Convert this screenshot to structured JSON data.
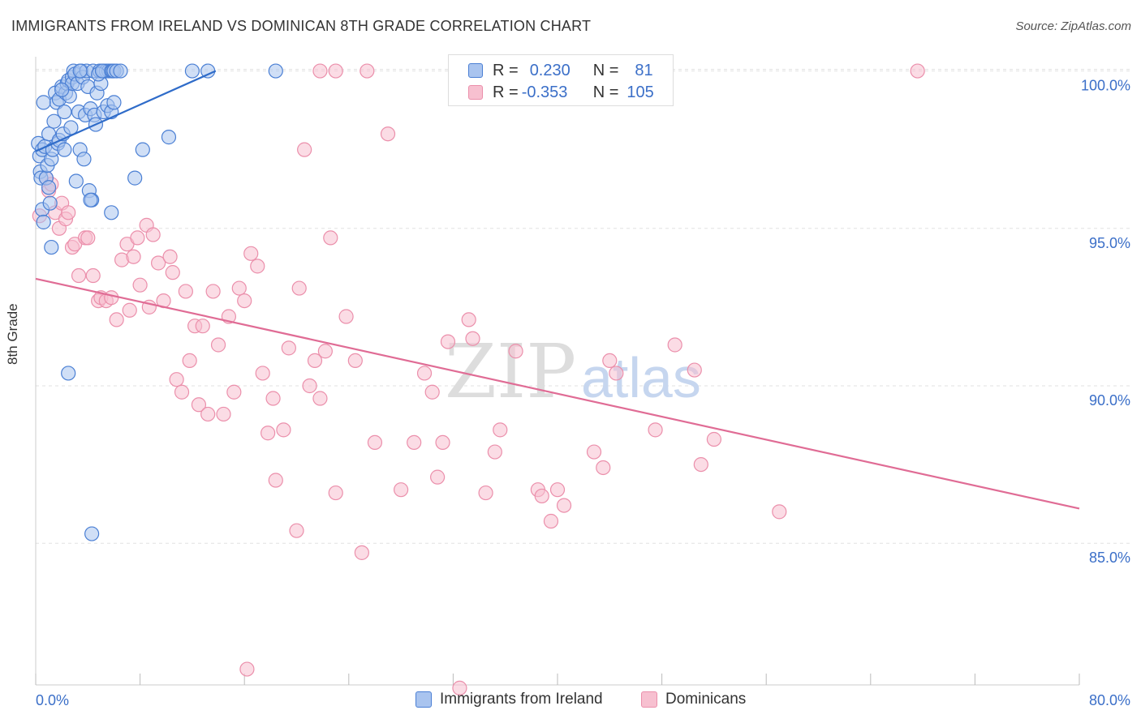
{
  "title": "IMMIGRANTS FROM IRELAND VS DOMINICAN 8TH GRADE CORRELATION CHART",
  "source": "Source: ZipAtlas.com",
  "watermark": {
    "part1": "ZIP",
    "part2": "atlas"
  },
  "legend": {
    "rows": [
      {
        "r_label": "R =",
        "r_value": "0.230",
        "n_label": "N =",
        "n_value": "81"
      },
      {
        "r_label": "R =",
        "r_value": "-0.353",
        "n_label": "N =",
        "n_value": "105"
      }
    ]
  },
  "colors": {
    "blue_fill": "#a9c4ef",
    "blue_stroke": "#4a7fd4",
    "blue_line": "#2f6cc9",
    "pink_fill": "#f7c0d0",
    "pink_stroke": "#eb8fab",
    "pink_line": "#e06c95",
    "tick_label": "#3b6fc8",
    "grid": "#e2e2e2"
  },
  "chart_data": {
    "type": "scatter",
    "title": "IMMIGRANTS FROM IRELAND VS DOMINICAN 8TH GRADE CORRELATION CHART",
    "xlabel": "",
    "ylabel": "8th Grade",
    "xlim": [
      0,
      80
    ],
    "ylim": [
      80.5,
      100.4
    ],
    "x_tick_labels": [
      "0.0%",
      "80.0%"
    ],
    "y_ticks": [
      85,
      90,
      95,
      100
    ],
    "y_tick_labels": [
      "85.0%",
      "90.0%",
      "95.0%",
      "100.0%"
    ],
    "grid": "horizontal dashed",
    "legend_position": "bottom",
    "series": [
      {
        "name": "Immigrants from Ireland",
        "color": "#a9c4ef",
        "r": 0.23,
        "n": 81,
        "trend": {
          "x": [
            0,
            13.8
          ],
          "y": [
            97.45,
            100.0
          ]
        },
        "points": [
          [
            0.2,
            97.7
          ],
          [
            0.3,
            97.3
          ],
          [
            0.35,
            96.8
          ],
          [
            0.4,
            96.6
          ],
          [
            0.5,
            97.5
          ],
          [
            0.5,
            95.6
          ],
          [
            0.6,
            95.2
          ],
          [
            0.7,
            97.6
          ],
          [
            0.8,
            96.6
          ],
          [
            0.9,
            97.0
          ],
          [
            1.0,
            96.3
          ],
          [
            1.1,
            95.8
          ],
          [
            1.0,
            98.0
          ],
          [
            1.2,
            97.2
          ],
          [
            1.3,
            97.5
          ],
          [
            1.4,
            98.4
          ],
          [
            1.5,
            99.3
          ],
          [
            1.6,
            99.0
          ],
          [
            1.7,
            97.7
          ],
          [
            1.8,
            99.1
          ],
          [
            1.8,
            97.8
          ],
          [
            2.0,
            99.5
          ],
          [
            2.1,
            98.0
          ],
          [
            2.2,
            97.5
          ],
          [
            2.3,
            99.3
          ],
          [
            2.4,
            99.6
          ],
          [
            2.5,
            99.7
          ],
          [
            2.6,
            99.2
          ],
          [
            2.7,
            98.2
          ],
          [
            2.8,
            99.8
          ],
          [
            2.8,
            99.6
          ],
          [
            2.9,
            100.0
          ],
          [
            3.0,
            99.9
          ],
          [
            3.1,
            96.5
          ],
          [
            3.2,
            99.6
          ],
          [
            3.3,
            98.7
          ],
          [
            3.4,
            97.5
          ],
          [
            3.5,
            100.0
          ],
          [
            3.6,
            99.8
          ],
          [
            3.7,
            97.2
          ],
          [
            3.8,
            98.6
          ],
          [
            3.9,
            100.0
          ],
          [
            4.0,
            99.5
          ],
          [
            4.1,
            96.2
          ],
          [
            4.2,
            98.8
          ],
          [
            4.3,
            95.9
          ],
          [
            4.4,
            100.0
          ],
          [
            4.5,
            98.6
          ],
          [
            4.6,
            98.3
          ],
          [
            4.7,
            99.3
          ],
          [
            4.9,
            100.0
          ],
          [
            5.0,
            99.6
          ],
          [
            5.2,
            100.0
          ],
          [
            5.4,
            100.0
          ],
          [
            5.6,
            100.0
          ],
          [
            4.8,
            99.9
          ],
          [
            5.1,
            100.0
          ],
          [
            5.8,
            100.0
          ],
          [
            5.9,
            100.0
          ],
          [
            6.0,
            100.0
          ],
          [
            4.2,
            95.9
          ],
          [
            5.2,
            98.7
          ],
          [
            5.5,
            98.9
          ],
          [
            5.8,
            95.5
          ],
          [
            6.2,
            100.0
          ],
          [
            1.2,
            94.4
          ],
          [
            2.5,
            90.4
          ],
          [
            4.3,
            85.3
          ],
          [
            5.8,
            98.7
          ],
          [
            6.0,
            99.0
          ],
          [
            6.5,
            100.0
          ],
          [
            8.2,
            97.5
          ],
          [
            10.2,
            97.9
          ],
          [
            7.6,
            96.6
          ],
          [
            12.0,
            100.0
          ],
          [
            13.2,
            100.0
          ],
          [
            18.4,
            100.0
          ],
          [
            0.6,
            99.0
          ],
          [
            2.0,
            99.4
          ],
          [
            3.4,
            100.0
          ],
          [
            2.2,
            98.7
          ]
        ]
      },
      {
        "name": "Dominicans",
        "color": "#f7c0d0",
        "r": -0.353,
        "n": 105,
        "trend": {
          "x": [
            0,
            80
          ],
          "y": [
            93.4,
            86.1
          ]
        },
        "points": [
          [
            0.3,
            95.4
          ],
          [
            0.8,
            96.6
          ],
          [
            1.0,
            96.2
          ],
          [
            1.2,
            96.4
          ],
          [
            1.5,
            95.5
          ],
          [
            1.8,
            95.0
          ],
          [
            2.0,
            95.8
          ],
          [
            2.3,
            95.3
          ],
          [
            2.5,
            95.5
          ],
          [
            2.8,
            94.4
          ],
          [
            3.0,
            94.5
          ],
          [
            3.3,
            93.5
          ],
          [
            3.8,
            94.7
          ],
          [
            4.0,
            94.7
          ],
          [
            4.4,
            93.5
          ],
          [
            4.8,
            92.7
          ],
          [
            5.0,
            92.8
          ],
          [
            5.4,
            92.7
          ],
          [
            5.8,
            92.8
          ],
          [
            6.2,
            92.1
          ],
          [
            6.6,
            94.0
          ],
          [
            7.0,
            94.5
          ],
          [
            7.2,
            92.4
          ],
          [
            7.5,
            94.1
          ],
          [
            7.8,
            94.7
          ],
          [
            8.0,
            93.2
          ],
          [
            8.5,
            95.1
          ],
          [
            8.7,
            92.5
          ],
          [
            9.0,
            94.8
          ],
          [
            9.4,
            93.9
          ],
          [
            9.8,
            92.7
          ],
          [
            10.3,
            94.1
          ],
          [
            10.5,
            93.6
          ],
          [
            10.8,
            90.2
          ],
          [
            11.2,
            89.8
          ],
          [
            11.5,
            93.0
          ],
          [
            11.8,
            90.8
          ],
          [
            12.2,
            91.9
          ],
          [
            12.5,
            89.4
          ],
          [
            12.8,
            91.9
          ],
          [
            13.2,
            89.1
          ],
          [
            13.6,
            93.0
          ],
          [
            14.0,
            91.3
          ],
          [
            14.4,
            89.1
          ],
          [
            14.8,
            92.2
          ],
          [
            15.2,
            89.8
          ],
          [
            15.6,
            93.1
          ],
          [
            16.0,
            92.7
          ],
          [
            16.5,
            94.2
          ],
          [
            17.0,
            93.8
          ],
          [
            17.4,
            90.4
          ],
          [
            17.8,
            88.5
          ],
          [
            18.2,
            89.6
          ],
          [
            18.4,
            87.0
          ],
          [
            19.0,
            88.6
          ],
          [
            19.4,
            91.2
          ],
          [
            20.0,
            85.4
          ],
          [
            20.2,
            93.1
          ],
          [
            20.6,
            97.5
          ],
          [
            21.0,
            90.0
          ],
          [
            21.4,
            90.8
          ],
          [
            21.8,
            89.6
          ],
          [
            22.2,
            91.1
          ],
          [
            22.6,
            94.7
          ],
          [
            23.0,
            86.6
          ],
          [
            23.8,
            92.2
          ],
          [
            24.5,
            90.8
          ],
          [
            25.0,
            84.7
          ],
          [
            26.0,
            88.2
          ],
          [
            27.0,
            98.0
          ],
          [
            28.0,
            86.7
          ],
          [
            29.0,
            88.2
          ],
          [
            29.8,
            90.4
          ],
          [
            30.4,
            89.8
          ],
          [
            30.8,
            87.1
          ],
          [
            31.2,
            88.2
          ],
          [
            31.6,
            91.4
          ],
          [
            32.5,
            80.4
          ],
          [
            33.2,
            92.1
          ],
          [
            33.5,
            91.5
          ],
          [
            34.5,
            86.6
          ],
          [
            35.2,
            87.9
          ],
          [
            35.6,
            88.6
          ],
          [
            36.8,
            91.1
          ],
          [
            38.5,
            86.7
          ],
          [
            38.8,
            86.5
          ],
          [
            39.5,
            85.7
          ],
          [
            40.0,
            86.7
          ],
          [
            40.5,
            86.2
          ],
          [
            42.8,
            87.9
          ],
          [
            43.5,
            87.4
          ],
          [
            44.0,
            90.8
          ],
          [
            44.5,
            90.4
          ],
          [
            47.5,
            88.6
          ],
          [
            49.0,
            91.3
          ],
          [
            50.5,
            90.5
          ],
          [
            51.0,
            87.5
          ],
          [
            52.0,
            88.3
          ],
          [
            57.0,
            86.0
          ],
          [
            21.8,
            100.0
          ],
          [
            23.0,
            100.0
          ],
          [
            25.4,
            100.0
          ],
          [
            32.5,
            100.0
          ],
          [
            67.6,
            100.0
          ],
          [
            16.2,
            81.0
          ]
        ]
      }
    ]
  },
  "bottom_legend": {
    "items": [
      "Immigrants from Ireland",
      "Dominicans"
    ]
  }
}
